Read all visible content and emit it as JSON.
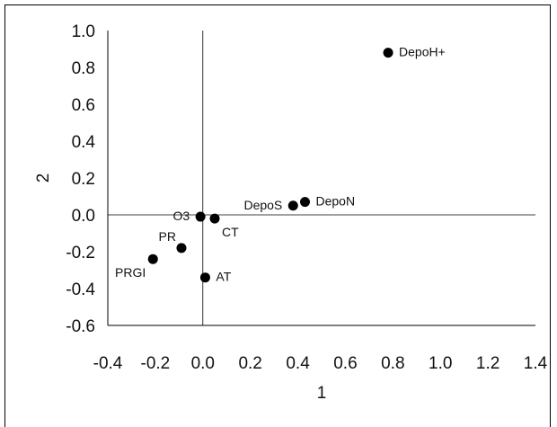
{
  "chart_data": {
    "type": "scatter",
    "title": "",
    "xlabel": "1",
    "ylabel": "2",
    "xlim": [
      -0.4,
      1.4
    ],
    "ylim": [
      -0.6,
      1.0
    ],
    "x_ticks": [
      -0.4,
      -0.2,
      0.0,
      0.2,
      0.4,
      0.6,
      0.8,
      1.0,
      1.2,
      1.4
    ],
    "y_ticks": [
      -0.6,
      -0.4,
      -0.2,
      0.0,
      0.2,
      0.4,
      0.6,
      0.8,
      1.0
    ],
    "x_tick_labels": [
      "-0.4",
      "-0.2",
      "0.0",
      "0.2",
      "0.4",
      "0.6",
      "0.8",
      "1.0",
      "1.2",
      "1.4"
    ],
    "y_tick_labels": [
      "-0.6",
      "-0.4",
      "-0.2",
      "0.0",
      "0.2",
      "0.4",
      "0.6",
      "0.8",
      "1.0"
    ],
    "reference_lines": {
      "x": 0.0,
      "y": 0.0
    },
    "grid": false,
    "point_color": "#000000",
    "points": [
      {
        "label": "DepoH+",
        "x": 0.78,
        "y": 0.88,
        "label_side": "right"
      },
      {
        "label": "DepoN",
        "x": 0.43,
        "y": 0.07,
        "label_side": "right"
      },
      {
        "label": "DepoS",
        "x": 0.38,
        "y": 0.05,
        "label_side": "left"
      },
      {
        "label": "O3",
        "x": -0.01,
        "y": -0.01,
        "label_side": "left"
      },
      {
        "label": "CT",
        "x": 0.05,
        "y": -0.02,
        "label_side": "below-right"
      },
      {
        "label": "PR",
        "x": -0.09,
        "y": -0.18,
        "label_side": "above-left"
      },
      {
        "label": "PRGI",
        "x": -0.21,
        "y": -0.24,
        "label_side": "below-left"
      },
      {
        "label": "AT",
        "x": 0.01,
        "y": -0.34,
        "label_side": "right"
      }
    ]
  }
}
